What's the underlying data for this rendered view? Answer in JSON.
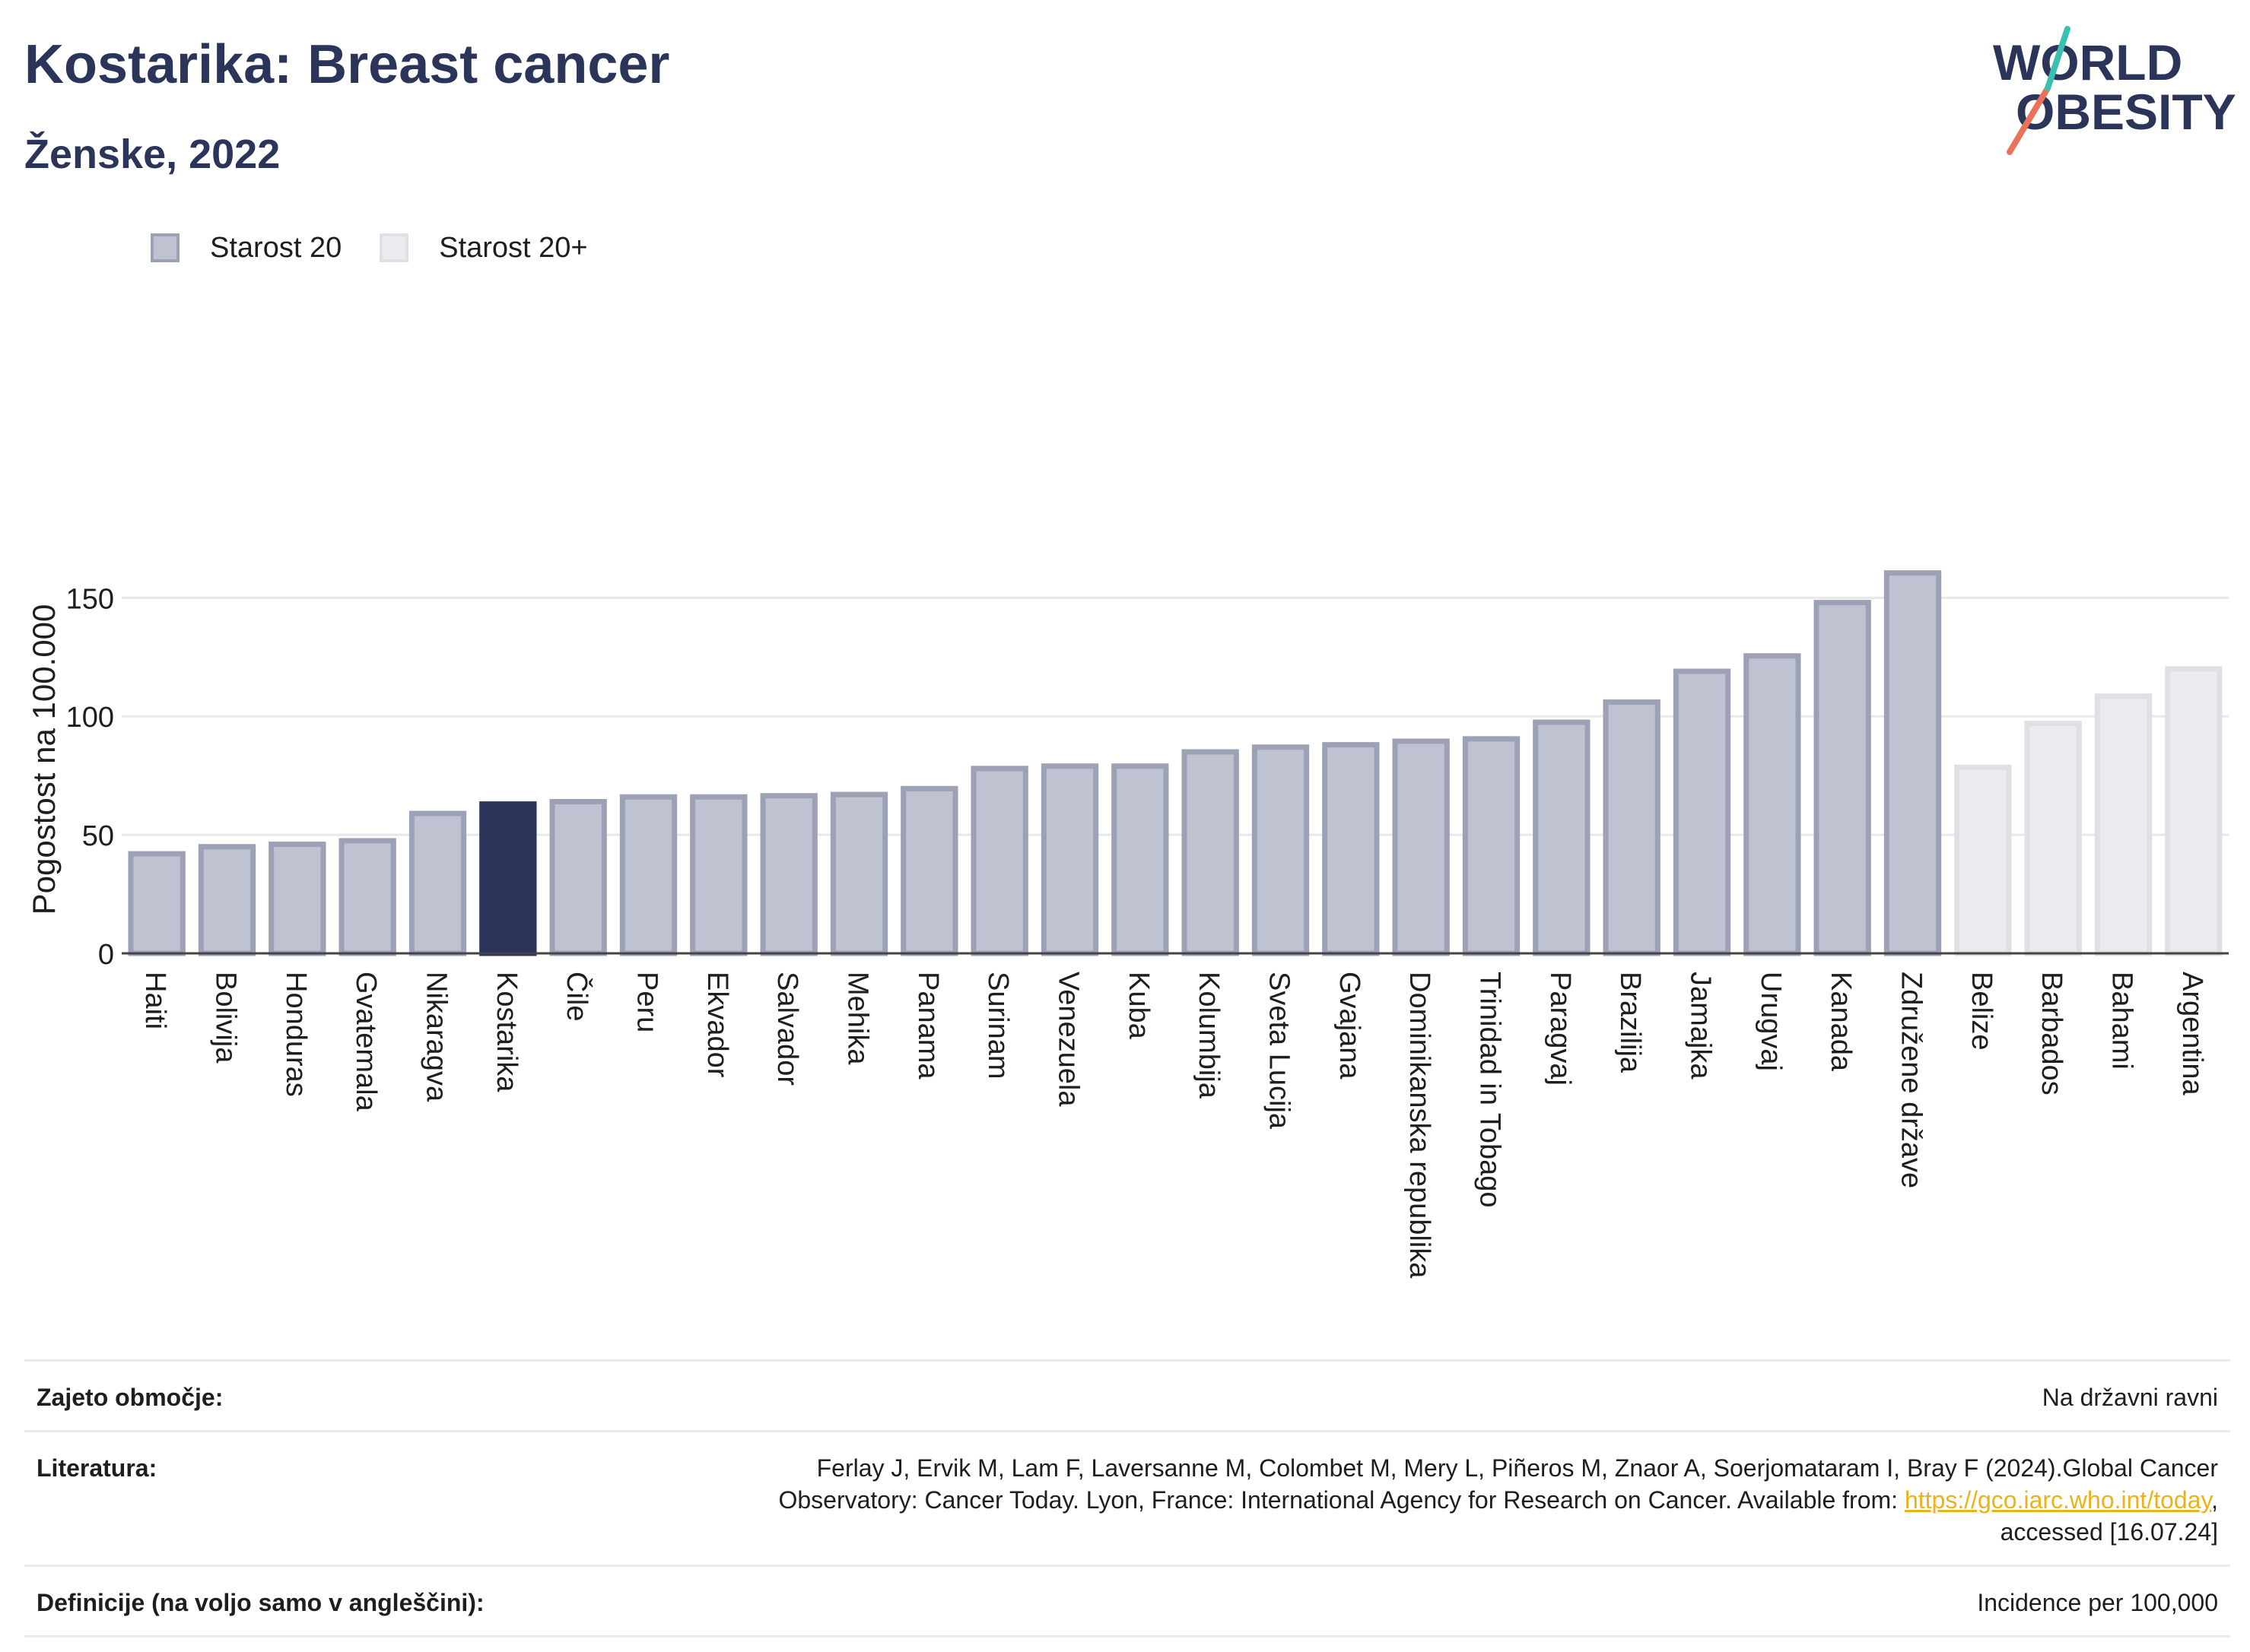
{
  "header": {
    "title": "Kostarika: Breast cancer",
    "subtitle": "Ženske, 2022",
    "logo_line1": "WORLD",
    "logo_line2": "OBESITY"
  },
  "legend": {
    "items": [
      {
        "label": "Starost 20",
        "color": "#bfc2d0",
        "border": "#9da1b6"
      },
      {
        "label": "Starost 20+",
        "color": "#ebecf0",
        "border": "#dfe0e6"
      }
    ]
  },
  "colors": {
    "highlight": "#2b3459",
    "age20_fill": "#bfc2d0",
    "age20_border": "#9da1b6",
    "age20plus_fill": "#ebecf0",
    "age20plus_border": "#dfe0e6",
    "logo_orange": "#e8735a",
    "logo_teal": "#3bbfb1",
    "link": "#e8b31b"
  },
  "chart_data": {
    "type": "bar",
    "ylabel": "Pogostost na 100.000",
    "ylim": [
      0,
      170
    ],
    "yticks": [
      0,
      50,
      100,
      150
    ],
    "grid": true,
    "categories": [
      "Haiti",
      "Bolivija",
      "Honduras",
      "Gvatemala",
      "Nikaragva",
      "Kostarika",
      "Čile",
      "Peru",
      "Ekvador",
      "Salvador",
      "Mehika",
      "Panama",
      "Surinam",
      "Venezuela",
      "Kuba",
      "Kolumbija",
      "Sveta Lucija",
      "Gvajana",
      "Dominikanska republika",
      "Trinidad in Tobago",
      "Paragvaj",
      "Brazilija",
      "Jamajka",
      "Urugvaj",
      "Kanada",
      "Združene države",
      "Belize",
      "Barbados",
      "Bahami",
      "Argentina"
    ],
    "values": [
      42,
      45,
      46,
      47.5,
      59,
      63,
      64,
      66,
      66,
      66.5,
      67,
      69.5,
      78,
      79,
      79,
      85,
      87,
      88,
      89.5,
      90.5,
      97.5,
      106,
      119,
      125.5,
      148,
      160.5,
      78.5,
      97,
      108.5,
      120
    ],
    "groups": [
      "Starost 20",
      "Starost 20",
      "Starost 20",
      "Starost 20",
      "Starost 20",
      "Starost 20",
      "Starost 20",
      "Starost 20",
      "Starost 20",
      "Starost 20",
      "Starost 20",
      "Starost 20",
      "Starost 20",
      "Starost 20",
      "Starost 20",
      "Starost 20",
      "Starost 20",
      "Starost 20",
      "Starost 20",
      "Starost 20",
      "Starost 20",
      "Starost 20",
      "Starost 20",
      "Starost 20",
      "Starost 20",
      "Starost 20",
      "Starost 20+",
      "Starost 20+",
      "Starost 20+",
      "Starost 20+"
    ],
    "highlight": "Kostarika"
  },
  "footer": {
    "coverage_label": "Zajeto območje:",
    "coverage_value": "Na državni ravni",
    "literature_label": "Literatura:",
    "literature_line1": "Ferlay J, Ervik M, Lam F, Laversanne M, Colombet M, Mery L, Piñeros M, Znaor A, Soerjomataram I, Bray F (2024).Global Cancer",
    "literature_line2_pre": "Observatory: Cancer Today. Lyon, France: International Agency for Research on Cancer. Available from: ",
    "literature_link": "https://gco.iarc.who.int/today",
    "literature_line2_post": ",",
    "literature_line3": "accessed [16.07.24]",
    "definitions_label": "Definicije (na voljo samo v angleščini):",
    "definitions_value": "Incidence per 100,000"
  }
}
